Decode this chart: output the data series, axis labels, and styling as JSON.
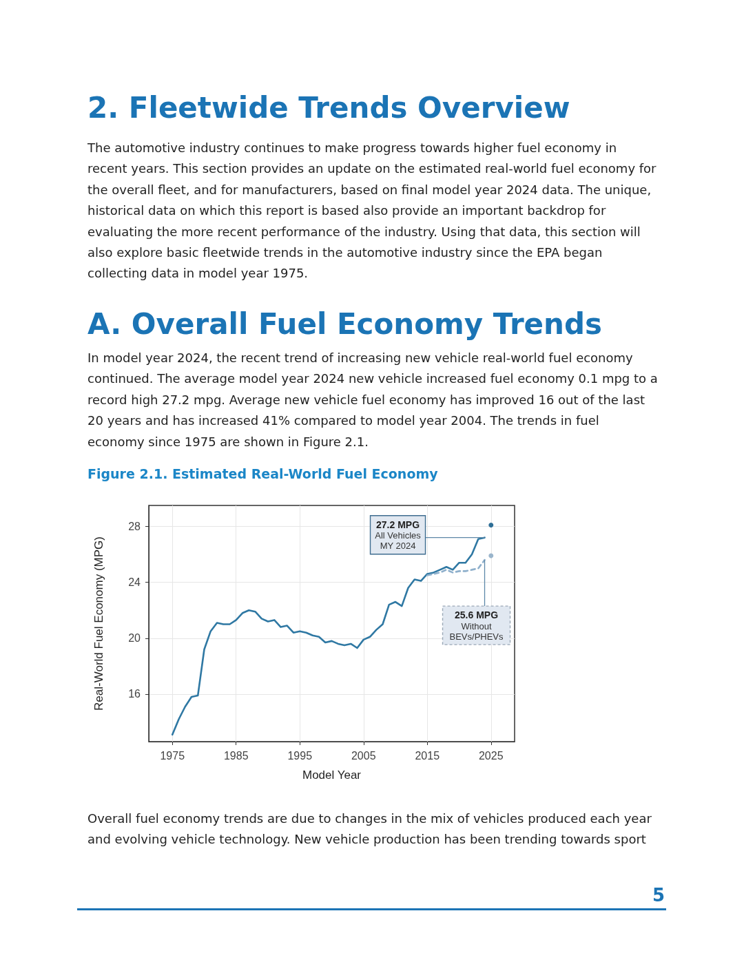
{
  "chart_data": {
    "type": "line",
    "title": "Figure 2.1. Estimated Real-World Fuel Economy",
    "xlabel": "Model Year",
    "ylabel": "Real-World Fuel Economy (MPG)",
    "xlim": [
      1971.3,
      2028.7
    ],
    "xticks": [
      1975,
      1985,
      1995,
      2005,
      2015,
      2025
    ],
    "ylim": [
      12.6,
      29.5
    ],
    "yticks": [
      16,
      20,
      24,
      28
    ],
    "grid": true,
    "marker": "none",
    "series": [
      {
        "color": "#2f78a3",
        "line_style": "solid",
        "x": [
          1975,
          1976,
          1977,
          1978,
          1979,
          1980,
          1981,
          1982,
          1983,
          1984,
          1985,
          1986,
          1987,
          1988,
          1989,
          1990,
          1991,
          1992,
          1993,
          1994,
          1995,
          1996,
          1997,
          1998,
          1999,
          2000,
          2001,
          2002,
          2003,
          2004,
          2005,
          2006,
          2007,
          2008,
          2009,
          2010,
          2011,
          2012,
          2013,
          2014,
          2015,
          2016,
          2017,
          2018,
          2019,
          2020,
          2021,
          2022,
          2023,
          2024
        ],
        "values": [
          13.1,
          14.2,
          15.1,
          15.8,
          15.9,
          19.2,
          20.5,
          21.1,
          21.0,
          21.0,
          21.3,
          21.8,
          22.0,
          21.9,
          21.4,
          21.2,
          21.3,
          20.8,
          20.9,
          20.4,
          20.5,
          20.4,
          20.2,
          20.1,
          19.7,
          19.8,
          19.6,
          19.5,
          19.6,
          19.3,
          19.9,
          20.1,
          20.6,
          21.0,
          22.4,
          22.6,
          22.3,
          23.6,
          24.2,
          24.1,
          24.6,
          24.7,
          24.9,
          25.1,
          24.9,
          25.4,
          25.4,
          26.0,
          27.1,
          27.2
        ]
      },
      {
        "color": "#8fb0cc",
        "line_style": "dashed",
        "x": [
          2015,
          2016,
          2017,
          2018,
          2019,
          2020,
          2021,
          2022,
          2023,
          2024
        ],
        "values": [
          24.5,
          24.6,
          24.7,
          24.9,
          24.7,
          24.8,
          24.8,
          24.9,
          25.0,
          25.6
        ]
      },
      {
        "type": "scatter",
        "marker": "circle",
        "x": [
          2025,
          2025
        ],
        "values": [
          28.1,
          25.9
        ],
        "colors": [
          "#2f6f97",
          "#9ab5cc"
        ]
      }
    ],
    "annotations": [
      "2.  Fleetwide Trends Overview",
      "The automotive industry continues to make progress towards higher fuel economy in recent years. This section provides an update on the estimated real-world fuel economy for the overall fleet, and for manufacturers, based on final model year 2024 data. The unique, historical data on which this report is based also provide an important backdrop for evaluating the more recent performance of the industry. Using that data, this section will also explore basic fleetwide trends in the automotive industry since the EPA began collecting data in model year 1975.",
      "A.  Overall Fuel Economy Trends",
      "In model year 2024, the recent trend of increasing new vehicle real-world fuel economy continued. The average model year 2024 new vehicle increased fuel economy 0.1 mpg to a record high 27.2 mpg. Average new vehicle fuel economy has improved 16 out of the last 20 years and has increased 41% compared to model year 2004. The trends in fuel economy since 1975 are shown in Figure 2.1.",
      "Overall fuel economy trends are due to changes in the mix of vehicles produced each year and evolving vehicle technology. New vehicle production has been trending towards sport",
      "5",
      {
        "text": "27.2 MPG\nAll Vehicles\nMY 2024",
        "x": 2024,
        "y": 27.2
      },
      {
        "text": "25.6 MPG\nWithout\nBEVs/PHEVs",
        "x": 2024,
        "y": 25.6
      }
    ]
  }
}
